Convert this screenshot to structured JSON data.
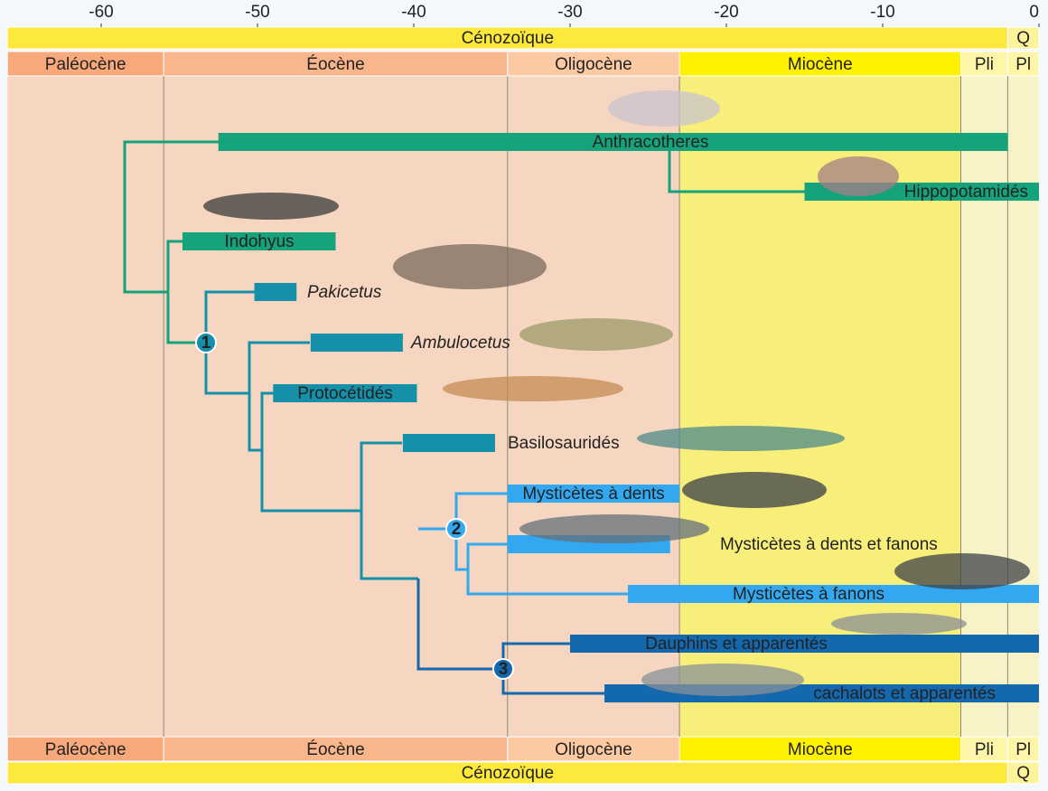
{
  "axis": {
    "ticks": [
      -60,
      -50,
      -40,
      -30,
      -20,
      -10,
      0
    ]
  },
  "eras": [
    {
      "label": "Cénozoïque",
      "start": -66,
      "end": -2,
      "color": "#fde93b"
    },
    {
      "label": "Q",
      "start": -2,
      "end": 0,
      "color": "#fdf39a"
    }
  ],
  "epochs": [
    {
      "label": "Paléocène",
      "start": -66,
      "end": -56,
      "header_color": "#f8a97c",
      "color": "#f6d6c0"
    },
    {
      "label": "Éocène",
      "start": -56,
      "end": -34,
      "header_color": "#f9b68c",
      "color": "#f6d6c0"
    },
    {
      "label": "Oligocène",
      "start": -34,
      "end": -23,
      "header_color": "#fbc9a2",
      "color": "#f6d6c0"
    },
    {
      "label": "Miocène",
      "start": -23,
      "end": -5,
      "header_color": "#fef200",
      "color": "#f8ef7a"
    },
    {
      "label": "Pli",
      "start": -5,
      "end": -2,
      "header_color": "#fdf5a8",
      "color": "#f7f3c6"
    },
    {
      "label": "Pl",
      "start": -2,
      "end": 0,
      "header_color": "#fdf5a8",
      "color": "#f7f3c6"
    }
  ],
  "taxa": [
    {
      "label": "Anthracotheres",
      "start": -52.5,
      "end": -2,
      "color": "#16a27b"
    },
    {
      "label": "Hippopotamidés",
      "start": -15,
      "end": 0,
      "color": "#16a27b"
    },
    {
      "label": "Indohyus",
      "start": -54.8,
      "end": -45,
      "color": "#16a27b"
    },
    {
      "label": "Pakicetus",
      "start": -50.2,
      "end": -47.5,
      "color": "#1690a8"
    },
    {
      "label": "Ambulocetus",
      "start": -46.6,
      "end": -40.7,
      "color": "#1690a8"
    },
    {
      "label": "Protocétidés",
      "start": -49,
      "end": -39.8,
      "color": "#1690a8"
    },
    {
      "label": "Basilosauridés",
      "start": -40.7,
      "end": -34.8,
      "color": "#1690a8"
    },
    {
      "label": "Mysticètes à dents",
      "start": -34,
      "end": -23,
      "color": "#33a8f0"
    },
    {
      "label": "Mysticètes à dents et fanons",
      "start": -34,
      "end": -23.6,
      "color": "#33a8f0"
    },
    {
      "label": "Mysticètes à fanons",
      "start": -26.3,
      "end": 0,
      "color": "#33a8f0"
    },
    {
      "label": "Dauphins et apparentés",
      "start": -30,
      "end": 0,
      "color": "#1468ad"
    },
    {
      "label": "cachalots et apparentés",
      "start": -27.8,
      "end": 0,
      "color": "#1468ad"
    }
  ],
  "nodes": [
    "1",
    "2",
    "3"
  ]
}
